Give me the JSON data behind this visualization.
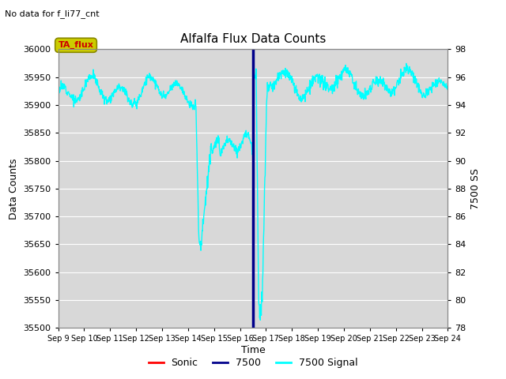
{
  "title": "Alfalfa Flux Data Counts",
  "subtitle": "No data for f_li77_cnt",
  "xlabel": "Time",
  "ylabel": "Data Counts",
  "ylabel_right": "7500 SS",
  "ylim_left": [
    35500,
    36000
  ],
  "ylim_right": [
    78,
    98
  ],
  "x_start": 9,
  "x_end": 24,
  "x_ticks": [
    9,
    10,
    11,
    12,
    13,
    14,
    15,
    16,
    17,
    18,
    19,
    20,
    21,
    22,
    23,
    24
  ],
  "x_tick_labels": [
    "Sep 9",
    "Sep 10",
    "Sep 11",
    "Sep 12",
    "Sep 13",
    "Sep 14",
    "Sep 15",
    "Sep 16",
    "Sep 17",
    "Sep 18",
    "Sep 19",
    "Sep 20",
    "Sep 21",
    "Sep 22",
    "Sep 23",
    "Sep 24"
  ],
  "y_ticks_left": [
    35500,
    35550,
    35600,
    35650,
    35700,
    35750,
    35800,
    35850,
    35900,
    35950,
    36000
  ],
  "y_ticks_right": [
    78,
    80,
    82,
    84,
    86,
    88,
    90,
    92,
    94,
    96,
    98
  ],
  "fig_bg_color": "#ffffff",
  "plot_bg_color": "#d8d8d8",
  "grid_color": "#ffffff",
  "line_color_7500_signal": "#00ffff",
  "line_color_7500": "#00008b",
  "line_color_sonic": "#ff0000",
  "vline_x": 16.5,
  "legend_entries": [
    "Sonic",
    "7500",
    "7500 Signal"
  ],
  "legend_colors": [
    "#ff0000",
    "#00008b",
    "#00ffff"
  ],
  "ta_flux_color": "#cccc00",
  "ta_flux_text_color": "#cc0000"
}
